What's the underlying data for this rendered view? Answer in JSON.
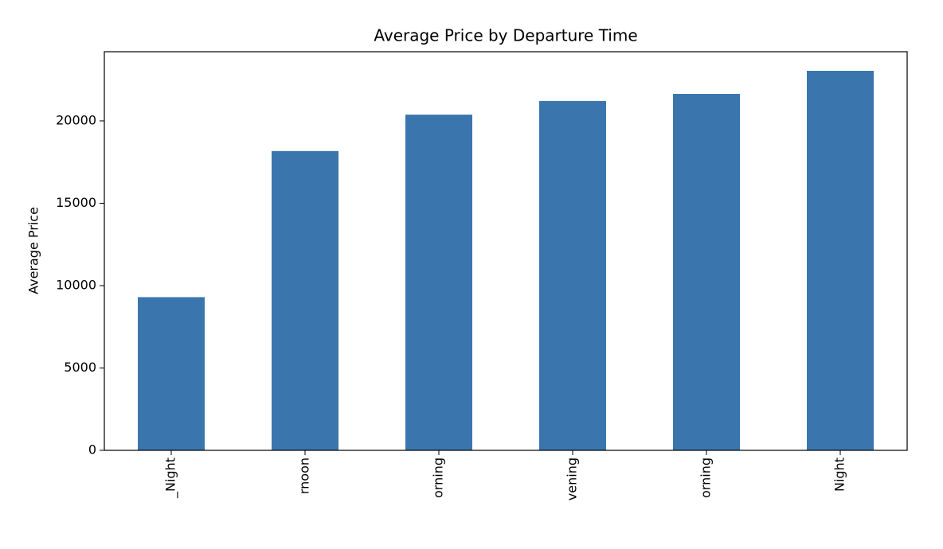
{
  "chart_data": {
    "type": "bar",
    "title": "Average Price by Departure Time",
    "ylabel": "Average Price",
    "categories": [
      "_Night",
      "rnoon",
      "orning",
      "vening",
      "orning",
      "Night"
    ],
    "values": [
      9300,
      18170,
      20380,
      21210,
      21640,
      23040
    ],
    "color": "#3a76ad",
    "ylim": [
      0,
      24200
    ],
    "yticks": [
      0,
      5000,
      10000,
      15000,
      20000
    ]
  }
}
